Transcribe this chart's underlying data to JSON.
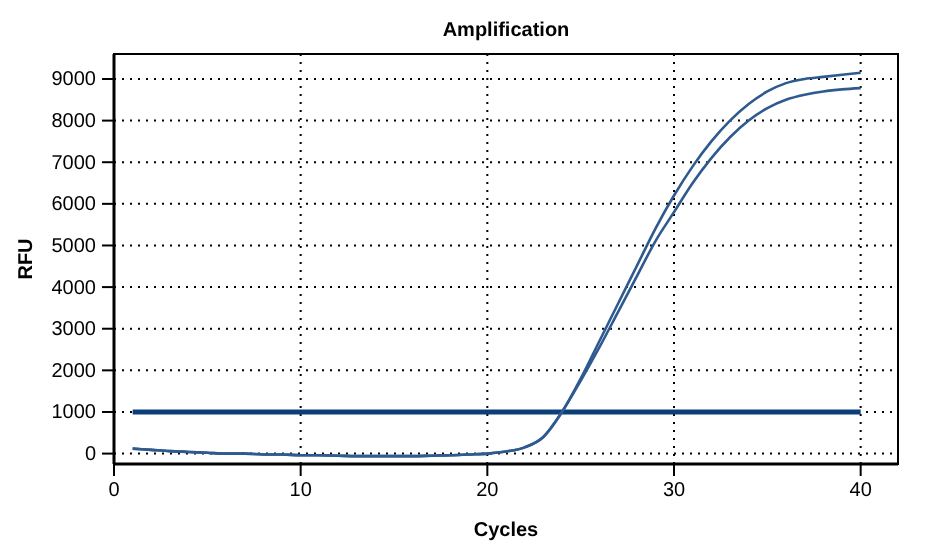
{
  "chart_data": {
    "type": "line",
    "title": "Amplification",
    "xlabel": "Cycles",
    "ylabel": "RFU",
    "x": [
      1,
      2,
      3,
      4,
      5,
      6,
      7,
      8,
      9,
      10,
      11,
      12,
      13,
      14,
      15,
      16,
      17,
      18,
      19,
      20,
      21,
      22,
      23,
      24,
      25,
      26,
      27,
      28,
      29,
      30,
      31,
      32,
      33,
      34,
      35,
      36,
      37,
      38,
      39,
      40
    ],
    "series": [
      {
        "color": "#2e5a8f",
        "values": [
          120,
          90,
          60,
          40,
          20,
          0,
          0,
          -20,
          -20,
          -40,
          -40,
          -50,
          -60,
          -60,
          -60,
          -60,
          -50,
          -40,
          -20,
          0,
          50,
          150,
          400,
          1000,
          1800,
          2700,
          3600,
          4500,
          5400,
          6200,
          6900,
          7500,
          8000,
          8400,
          8700,
          8900,
          9000,
          9050,
          9100,
          9150
        ]
      },
      {
        "color": "#2e5a8f",
        "values": [
          120,
          90,
          60,
          40,
          20,
          0,
          0,
          -20,
          -20,
          -40,
          -40,
          -50,
          -60,
          -60,
          -60,
          -60,
          -50,
          -40,
          -20,
          0,
          50,
          150,
          400,
          1000,
          1750,
          2550,
          3400,
          4250,
          5100,
          5800,
          6500,
          7100,
          7600,
          8000,
          8300,
          8500,
          8620,
          8700,
          8750,
          8780
        ]
      }
    ],
    "ref_lines": [
      {
        "axis": "y",
        "value": 1000,
        "color": "#0b3f7a"
      }
    ],
    "xlim": [
      0,
      42
    ],
    "xticks": [
      0,
      10,
      20,
      30,
      40
    ],
    "ylim": [
      -250,
      9600
    ],
    "yticks": [
      0,
      1000,
      2000,
      3000,
      4000,
      5000,
      6000,
      7000,
      8000,
      9000
    ],
    "grid": true,
    "line_style": "solid",
    "marker": "none"
  }
}
